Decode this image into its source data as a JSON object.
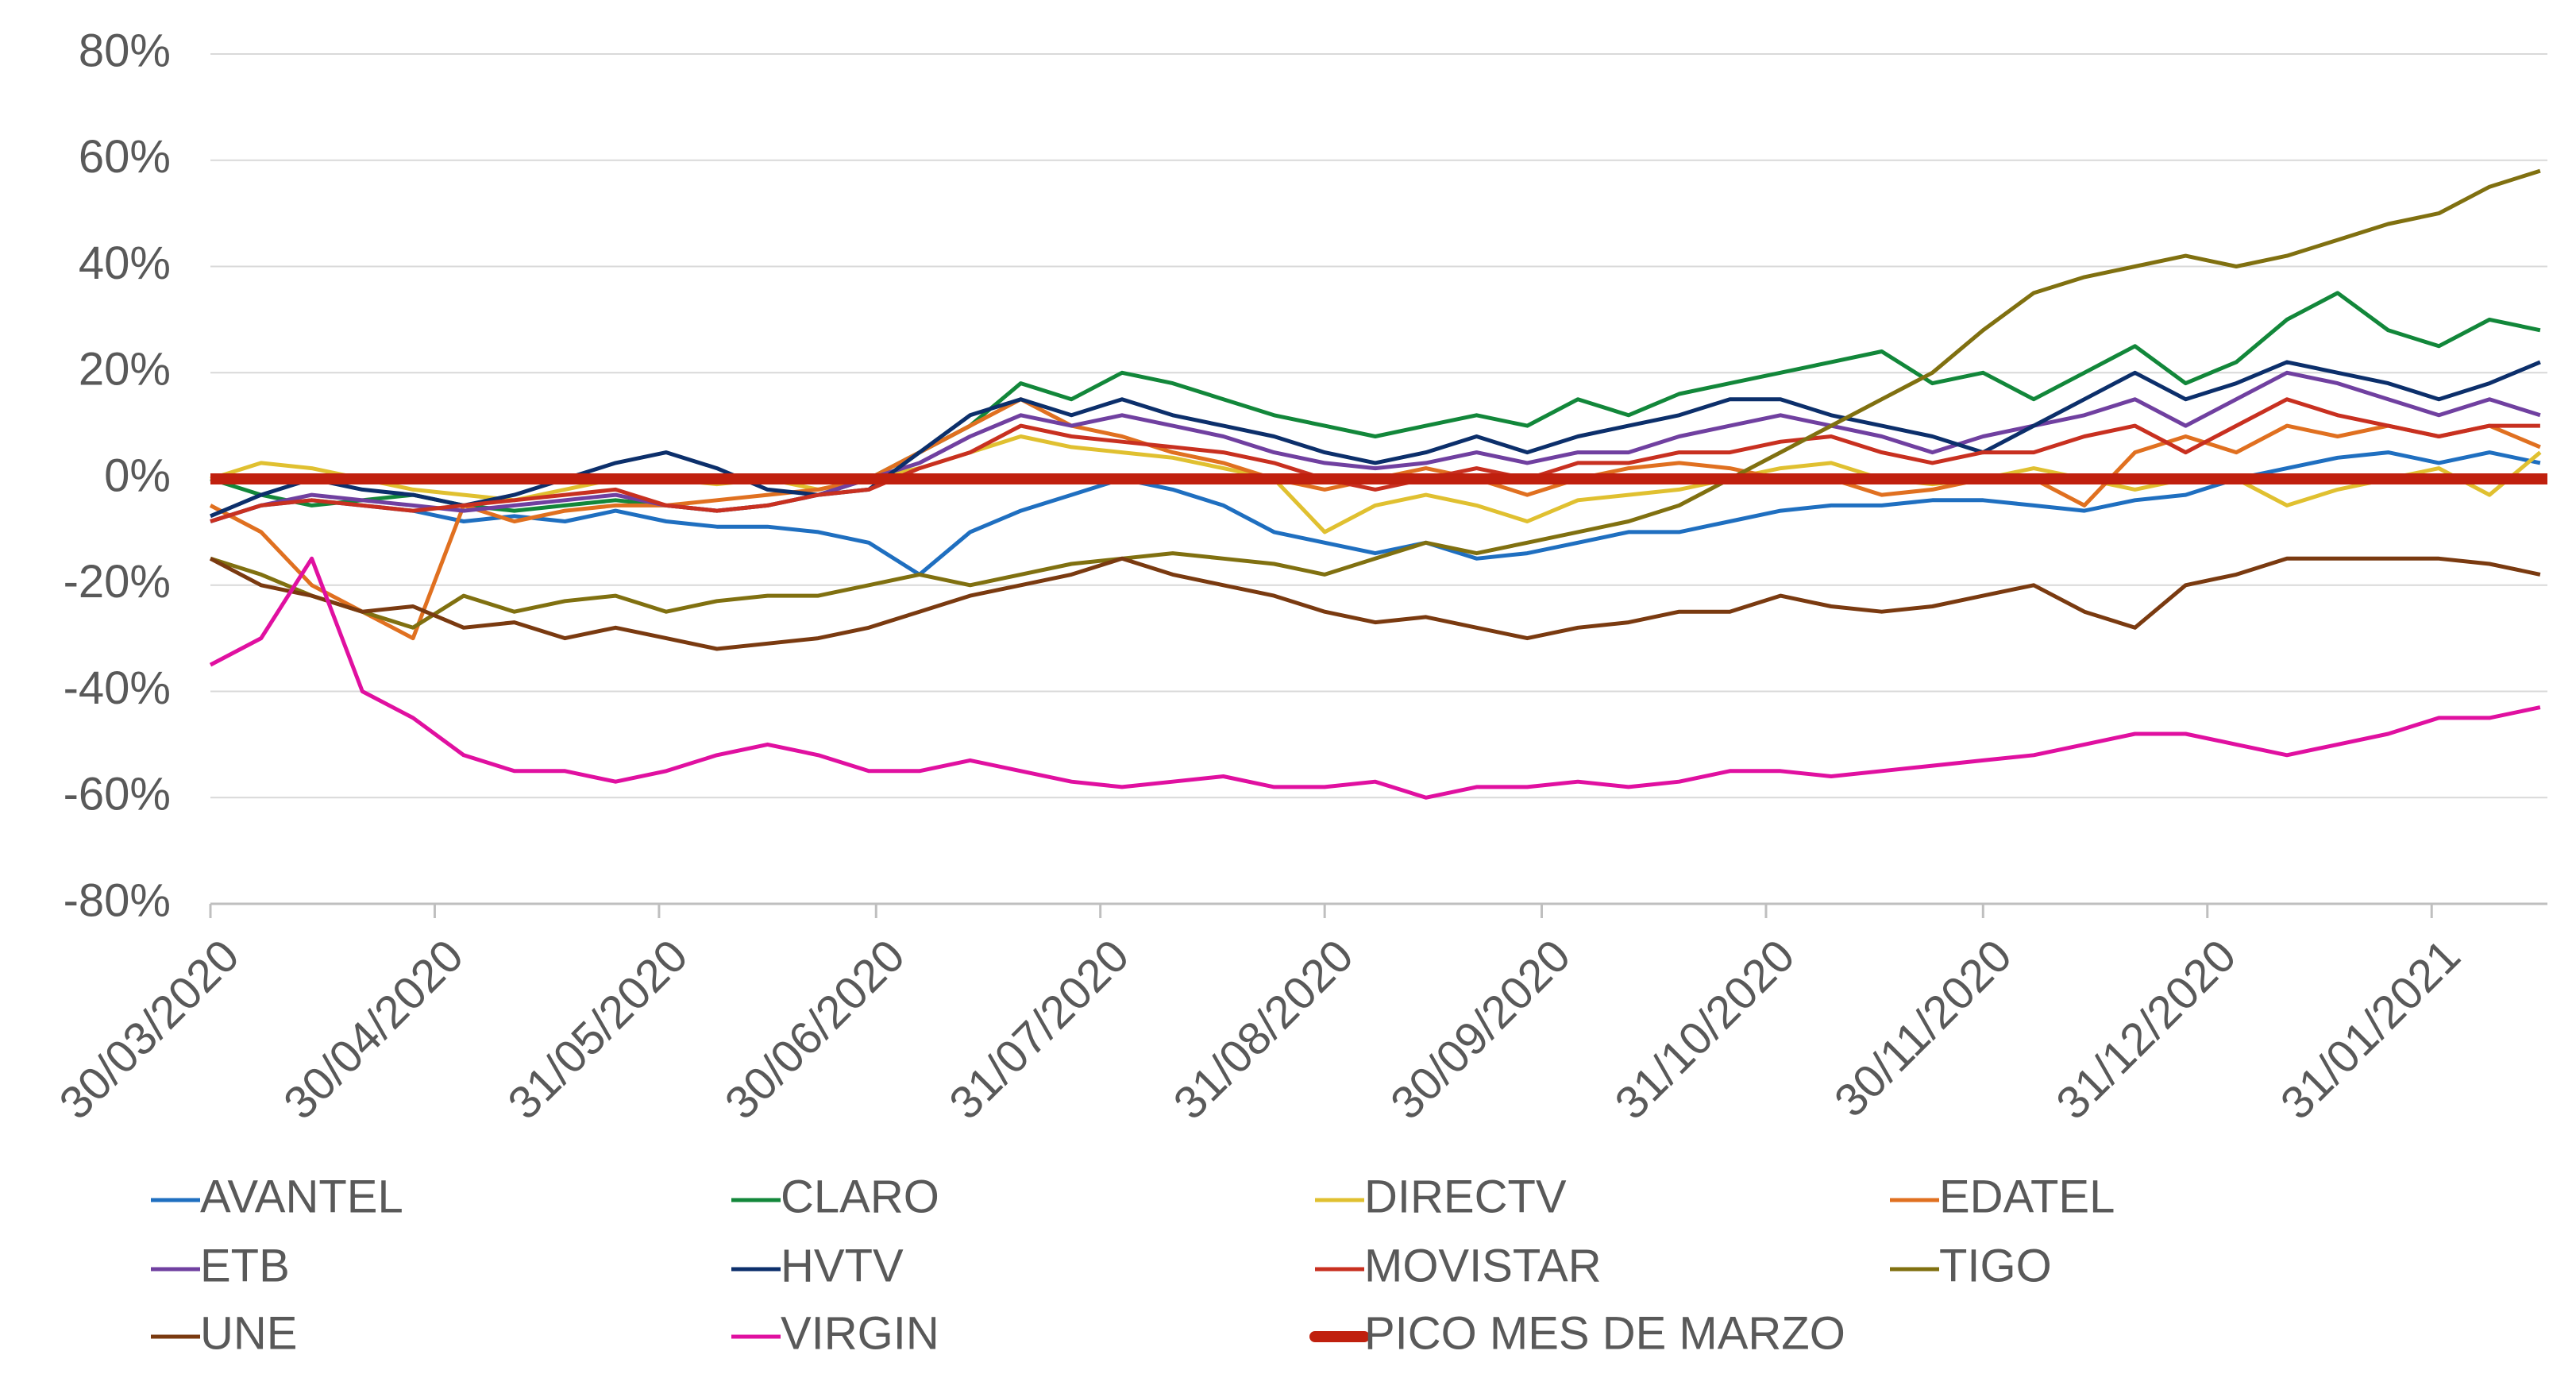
{
  "chart_data": {
    "type": "line",
    "x": [
      "30/03/2020",
      "06/04/2020",
      "13/04/2020",
      "20/04/2020",
      "27/04/2020",
      "04/05/2020",
      "11/05/2020",
      "18/05/2020",
      "25/05/2020",
      "01/06/2020",
      "08/06/2020",
      "15/06/2020",
      "22/06/2020",
      "29/06/2020",
      "06/07/2020",
      "13/07/2020",
      "20/07/2020",
      "27/07/2020",
      "03/08/2020",
      "10/08/2020",
      "17/08/2020",
      "24/08/2020",
      "31/08/2020",
      "07/09/2020",
      "14/09/2020",
      "21/09/2020",
      "28/09/2020",
      "05/10/2020",
      "12/10/2020",
      "19/10/2020",
      "26/10/2020",
      "02/11/2020",
      "09/11/2020",
      "16/11/2020",
      "23/11/2020",
      "30/11/2020",
      "07/12/2020",
      "14/12/2020",
      "21/12/2020",
      "28/12/2020",
      "04/01/2021",
      "11/01/2021",
      "18/01/2021",
      "25/01/2021",
      "01/02/2021",
      "08/02/2021",
      "15/02/2021"
    ],
    "xlim": [
      "30/03/2020",
      "16/02/2021"
    ],
    "xticks": [
      "30/03/2020",
      "30/04/2020",
      "31/05/2020",
      "30/06/2020",
      "31/07/2020",
      "31/08/2020",
      "30/09/2020",
      "31/10/2020",
      "30/11/2020",
      "31/12/2020",
      "31/01/2021"
    ],
    "ylim": [
      -80,
      80
    ],
    "yticks": [
      {
        "value": -80,
        "label": "-80%"
      },
      {
        "value": -60,
        "label": "-60%"
      },
      {
        "value": -40,
        "label": "-40%"
      },
      {
        "value": -20,
        "label": "-20%"
      },
      {
        "value": 0,
        "label": "0%"
      },
      {
        "value": 20,
        "label": "20%"
      },
      {
        "value": 40,
        "label": "40%"
      },
      {
        "value": 60,
        "label": "60%"
      },
      {
        "value": 80,
        "label": "80%"
      }
    ],
    "grid": true,
    "legend": "bottom",
    "series": [
      {
        "name": "AVANTEL",
        "color": "#1f6fc0",
        "values": [
          -8,
          -5,
          -4,
          -5,
          -6,
          -8,
          -7,
          -8,
          -6,
          -8,
          -9,
          -9,
          -10,
          -12,
          -18,
          -10,
          -6,
          -3,
          0,
          -2,
          -5,
          -10,
          -12,
          -14,
          -12,
          -15,
          -14,
          -12,
          -10,
          -10,
          -8,
          -6,
          -5,
          -5,
          -4,
          -4,
          -5,
          -6,
          -4,
          -3,
          0,
          2,
          4,
          5,
          3,
          5,
          3
        ]
      },
      {
        "name": "CLARO",
        "color": "#12873a",
        "values": [
          0,
          -3,
          -5,
          -4,
          -3,
          -5,
          -6,
          -5,
          -4,
          -5,
          -6,
          -5,
          -3,
          0,
          5,
          10,
          18,
          15,
          20,
          18,
          15,
          12,
          10,
          8,
          10,
          12,
          10,
          15,
          12,
          16,
          18,
          20,
          22,
          24,
          18,
          20,
          15,
          20,
          25,
          18,
          22,
          30,
          35,
          28,
          25,
          30,
          28
        ]
      },
      {
        "name": "DIRECTV",
        "color": "#e0c030",
        "values": [
          0,
          3,
          2,
          0,
          -2,
          -3,
          -4,
          -2,
          0,
          0,
          -1,
          0,
          -2,
          0,
          2,
          5,
          8,
          6,
          5,
          4,
          2,
          0,
          -10,
          -5,
          -3,
          -5,
          -8,
          -4,
          -3,
          -2,
          0,
          2,
          3,
          0,
          -1,
          0,
          2,
          0,
          -2,
          0,
          0,
          -5,
          -2,
          0,
          2,
          -3,
          5
        ]
      },
      {
        "name": "EDATEL",
        "color": "#e07020",
        "values": [
          -5,
          -10,
          -20,
          -25,
          -30,
          -5,
          -8,
          -6,
          -5,
          -5,
          -4,
          -3,
          -2,
          0,
          5,
          10,
          15,
          10,
          8,
          5,
          3,
          0,
          -2,
          0,
          2,
          0,
          -3,
          0,
          2,
          3,
          2,
          0,
          0,
          -3,
          -2,
          0,
          0,
          -5,
          5,
          8,
          5,
          10,
          8,
          10,
          8,
          10,
          6
        ]
      },
      {
        "name": "ETB",
        "color": "#7040a0",
        "values": [
          -8,
          -5,
          -3,
          -4,
          -5,
          -6,
          -5,
          -4,
          -3,
          -5,
          -6,
          -5,
          -3,
          0,
          3,
          8,
          12,
          10,
          12,
          10,
          8,
          5,
          3,
          2,
          3,
          5,
          3,
          5,
          5,
          8,
          10,
          12,
          10,
          8,
          5,
          8,
          10,
          12,
          15,
          10,
          15,
          20,
          18,
          15,
          12,
          15,
          12
        ]
      },
      {
        "name": "HVTV",
        "color": "#0c2f6b",
        "values": [
          -7,
          -3,
          0,
          -2,
          -3,
          -5,
          -3,
          0,
          3,
          5,
          2,
          -2,
          -3,
          -2,
          5,
          12,
          15,
          12,
          15,
          12,
          10,
          8,
          5,
          3,
          5,
          8,
          5,
          8,
          10,
          12,
          15,
          15,
          12,
          10,
          8,
          5,
          10,
          15,
          20,
          15,
          18,
          22,
          20,
          18,
          15,
          18,
          22
        ]
      },
      {
        "name": "MOVISTAR",
        "color": "#c83020",
        "values": [
          -8,
          -5,
          -4,
          -5,
          -6,
          -5,
          -4,
          -3,
          -2,
          -5,
          -6,
          -5,
          -3,
          -2,
          2,
          5,
          10,
          8,
          7,
          6,
          5,
          3,
          0,
          -2,
          0,
          2,
          0,
          3,
          3,
          5,
          5,
          7,
          8,
          5,
          3,
          5,
          5,
          8,
          10,
          5,
          10,
          15,
          12,
          10,
          8,
          10,
          10
        ]
      },
      {
        "name": "TIGO",
        "color": "#807010",
        "values": [
          -15,
          -18,
          -22,
          -25,
          -28,
          -22,
          -25,
          -23,
          -22,
          -25,
          -23,
          -22,
          -22,
          -20,
          -18,
          -20,
          -18,
          -16,
          -15,
          -14,
          -15,
          -16,
          -18,
          -15,
          -12,
          -14,
          -12,
          -10,
          -8,
          -5,
          0,
          5,
          10,
          15,
          20,
          28,
          35,
          38,
          40,
          42,
          40,
          42,
          45,
          48,
          50,
          55,
          58
        ]
      },
      {
        "name": "UNE",
        "color": "#7a3a10",
        "values": [
          -15,
          -20,
          -22,
          -25,
          -24,
          -28,
          -27,
          -30,
          -28,
          -30,
          -32,
          -31,
          -30,
          -28,
          -25,
          -22,
          -20,
          -18,
          -15,
          -18,
          -20,
          -22,
          -25,
          -27,
          -26,
          -28,
          -30,
          -28,
          -27,
          -25,
          -25,
          -22,
          -24,
          -25,
          -24,
          -22,
          -20,
          -25,
          -28,
          -20,
          -18,
          -15,
          -15,
          -15,
          -15,
          -16,
          -18
        ]
      },
      {
        "name": "VIRGIN",
        "color": "#e010a0",
        "values": [
          -35,
          -30,
          -15,
          -40,
          -45,
          -52,
          -55,
          -55,
          -57,
          -55,
          -52,
          -50,
          -52,
          -55,
          -55,
          -53,
          -55,
          -57,
          -58,
          -57,
          -56,
          -58,
          -58,
          -57,
          -60,
          -58,
          -58,
          -57,
          -58,
          -57,
          -55,
          -55,
          -56,
          -55,
          -54,
          -53,
          -52,
          -50,
          -48,
          -48,
          -50,
          -52,
          -50,
          -48,
          -45,
          -45,
          -43
        ]
      }
    ],
    "reference_line": {
      "name": "PICO MES DE MARZO",
      "value": 0,
      "color": "#c0200e"
    }
  }
}
